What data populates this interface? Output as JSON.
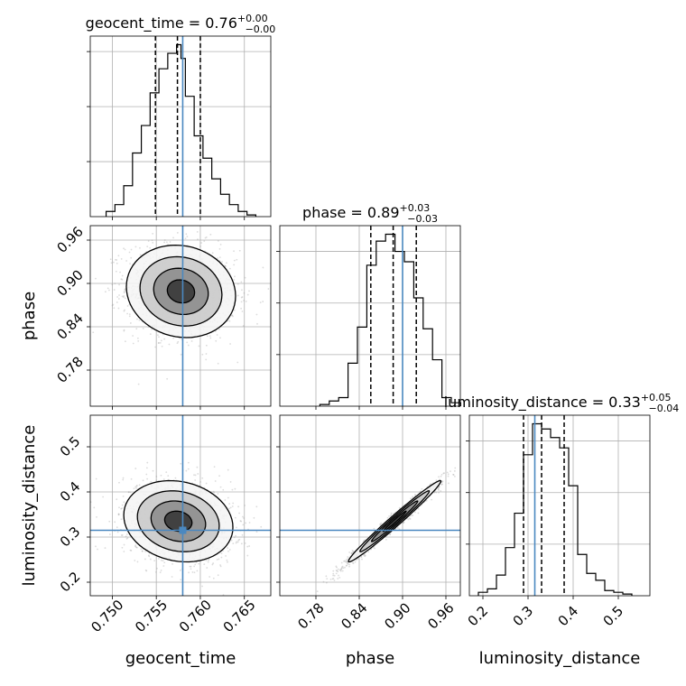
{
  "chart_data": {
    "type": "corner",
    "parameters": [
      {
        "key": "geocent_time",
        "axis_label": "geocent_time",
        "title_base": "geocent_time = 0.76",
        "title_sup": "+0.00",
        "title_sub": "−0.00",
        "range": [
          0.7475,
          0.768
        ],
        "ticks": [
          0.75,
          0.755,
          0.76,
          0.765
        ],
        "tick_labels": [
          "0.750",
          "0.755",
          "0.760",
          "0.765"
        ],
        "truth": 0.758,
        "quantiles": [
          0.7549,
          0.7574,
          0.76
        ],
        "hist_edges": [
          0.7493,
          0.7503,
          0.7513,
          0.7523,
          0.7533,
          0.7543,
          0.7553,
          0.7563,
          0.7573,
          0.7578,
          0.7583,
          0.7593,
          0.7603,
          0.7613,
          0.7623,
          0.7633,
          0.7643,
          0.7653,
          0.7663
        ],
        "hist_counts": [
          0.03,
          0.07,
          0.18,
          0.37,
          0.53,
          0.72,
          0.86,
          0.95,
          1.0,
          0.92,
          0.7,
          0.47,
          0.34,
          0.22,
          0.13,
          0.07,
          0.03,
          0.01
        ],
        "hist_max": 1.0,
        "hist_ticks": [
          0.32,
          0.64,
          0.96
        ]
      },
      {
        "key": "phase",
        "axis_label": "phase",
        "title_base": "phase = 0.89",
        "title_sup": "+0.03",
        "title_sub": "−0.03",
        "range": [
          0.73,
          0.98
        ],
        "ticks": [
          0.78,
          0.84,
          0.9,
          0.96
        ],
        "tick_labels": [
          "0.78",
          "0.84",
          "0.90",
          "0.96"
        ],
        "truth": 0.9,
        "quantiles": [
          0.856,
          0.887,
          0.919
        ],
        "hist_edges": [
          0.7855,
          0.7985,
          0.8115,
          0.8245,
          0.8375,
          0.8505,
          0.8635,
          0.8765,
          0.8895,
          0.9025,
          0.9155,
          0.9285,
          0.9415,
          0.9545,
          0.9675,
          0.9805
        ],
        "hist_counts": [
          0.01,
          0.03,
          0.05,
          0.25,
          0.46,
          0.82,
          0.96,
          1.0,
          0.9,
          0.84,
          0.63,
          0.45,
          0.27,
          0.05,
          0.02
        ],
        "hist_max": 1.0,
        "hist_ticks": [
          0.3,
          0.6,
          0.9
        ]
      },
      {
        "key": "luminosity_distance",
        "axis_label": "luminosity_distance",
        "title_base": "luminosity_distance = 0.33",
        "title_sup": "+0.05",
        "title_sub": "−0.04",
        "range": [
          0.17,
          0.57
        ],
        "ticks": [
          0.2,
          0.3,
          0.4,
          0.5
        ],
        "tick_labels": [
          "0.2",
          "0.3",
          "0.4",
          "0.5"
        ],
        "truth": 0.315,
        "quantiles": [
          0.29,
          0.33,
          0.38
        ],
        "hist_edges": [
          0.19,
          0.21,
          0.23,
          0.25,
          0.27,
          0.29,
          0.31,
          0.33,
          0.35,
          0.37,
          0.39,
          0.41,
          0.43,
          0.45,
          0.47,
          0.49,
          0.51,
          0.53
        ],
        "hist_counts": [
          0.02,
          0.04,
          0.12,
          0.28,
          0.48,
          0.82,
          1.0,
          0.97,
          0.92,
          0.86,
          0.64,
          0.24,
          0.13,
          0.09,
          0.03,
          0.02,
          0.01
        ],
        "hist_max": 1.0,
        "hist_ticks": [
          0.3,
          0.6,
          0.9
        ]
      }
    ],
    "pairs": [
      {
        "x": "geocent_time",
        "y": "phase",
        "mean": [
          0.7578,
          0.889
        ],
        "sigma": [
          0.0031,
          0.032
        ],
        "rho": -0.1,
        "truth": [
          0.758,
          null
        ]
      },
      {
        "x": "geocent_time",
        "y": "luminosity_distance",
        "mean": [
          0.7575,
          0.335
        ],
        "sigma": [
          0.0031,
          0.045
        ],
        "rho": -0.15,
        "truth": [
          0.758,
          0.315
        ]
      },
      {
        "x": "phase",
        "y": "luminosity_distance",
        "mean": [
          0.889,
          0.335
        ],
        "sigma": [
          0.032,
          0.045
        ],
        "rho": 0.985,
        "truth": [
          null,
          0.315
        ]
      }
    ],
    "grid": true,
    "truth_color": "#4a88c0",
    "quantile_style": "dashed",
    "contour_color": "#000000",
    "scatter_color": "#9a9a9a"
  }
}
